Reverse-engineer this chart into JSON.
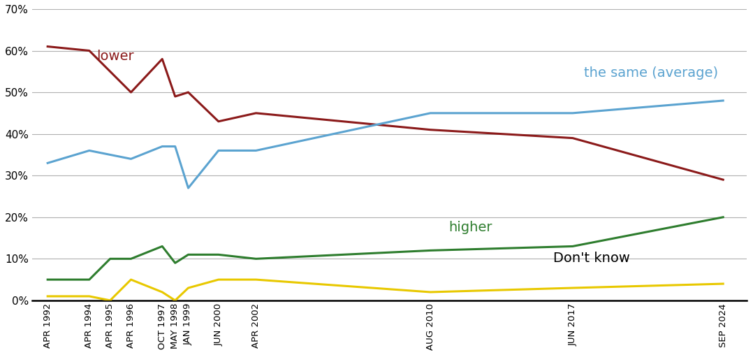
{
  "x_labels": [
    "APR 1992",
    "APR 1994",
    "APR 1995",
    "APR 1996",
    "OCT 1997",
    "MAY 1998",
    "JAN 1999",
    "JUN 2000",
    "APR 2002",
    "AUG 2010",
    "JUN 2017",
    "SEP 2024"
  ],
  "x_years": [
    1992.25,
    1994.25,
    1995.25,
    1996.25,
    1997.75,
    1998.37,
    1999.0,
    2000.45,
    2002.25,
    2010.62,
    2017.45,
    2024.67
  ],
  "lower": [
    61,
    60,
    55,
    50,
    58,
    49,
    50,
    43,
    45,
    41,
    39,
    29
  ],
  "same": [
    33,
    36,
    35,
    34,
    37,
    37,
    27,
    36,
    36,
    45,
    45,
    48
  ],
  "higher": [
    5,
    5,
    10,
    10,
    13,
    9,
    11,
    11,
    10,
    12,
    13,
    20
  ],
  "dontknow": [
    1,
    1,
    0,
    5,
    2,
    0,
    3,
    5,
    5,
    2,
    3,
    4
  ],
  "lower_color": "#8B1A1A",
  "same_color": "#5BA3D0",
  "higher_color": "#2E7D2E",
  "dontknow_color": "#E8C800",
  "background_color": "#FFFFFF",
  "grid_color": "#B0B0B0",
  "ylim": [
    0,
    70
  ],
  "yticks": [
    0,
    10,
    20,
    30,
    40,
    50,
    60,
    70
  ],
  "label_lower": "lower",
  "label_same": "the same (average)",
  "label_higher": "higher",
  "label_dontknow": "Don't know",
  "linewidth": 2.2
}
